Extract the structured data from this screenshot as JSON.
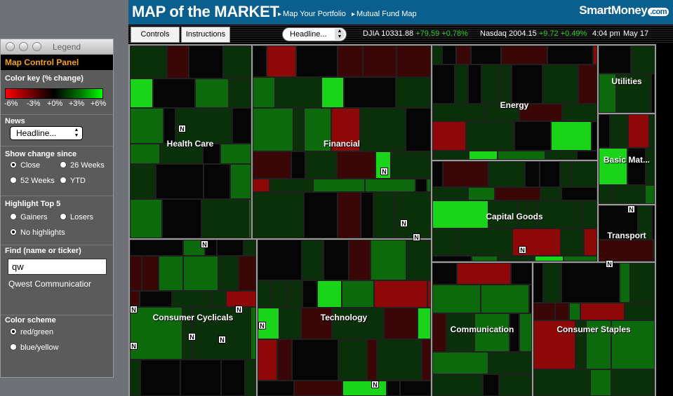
{
  "header": {
    "title": "MAP of the MARKET",
    "links": [
      "Map Your Portfolio",
      "Mutual Fund Map"
    ],
    "logo": "SmartMoney",
    "logo_suffix": ".com"
  },
  "toolbar": {
    "controls_label": "Controls",
    "instructions_label": "Instructions",
    "headline_select": "Headline...",
    "djia_name": "DJIA",
    "djia_value": "10331.88",
    "djia_change": "+79.59",
    "djia_pct": "+0.78%",
    "nasdaq_name": "Nasdaq",
    "nasdaq_value": "2004.15",
    "nasdaq_change": "+9.72",
    "nasdaq_pct": "+0.49%",
    "time": "4:04 pm",
    "date": "May 17"
  },
  "legend": {
    "window_title": "Legend",
    "panel_title": "Map Control Panel",
    "color_key_title": "Color key (% change)",
    "color_key_labels": [
      "-6%",
      "-3%",
      "+0%",
      "+3%",
      "+6%"
    ],
    "news_title": "News",
    "news_select": "Headline...",
    "change_title": "Show change since",
    "change_options": [
      "Close",
      "26 Weeks",
      "52 Weeks",
      "YTD"
    ],
    "change_selected": "Close",
    "highlight_title": "Highlight Top 5",
    "highlight_options": [
      "Gainers",
      "Losers",
      "No highlights"
    ],
    "highlight_selected": "No highlights",
    "find_title": "Find (name or ticker)",
    "find_value": "qw",
    "find_result": "Qwest Communicatior",
    "scheme_title": "Color scheme",
    "scheme_options": [
      "red/green",
      "blue/yellow"
    ],
    "scheme_selected": "red/green"
  },
  "map": {
    "sectors": [
      {
        "name": "Health Care"
      },
      {
        "name": "Financial"
      },
      {
        "name": "Energy"
      },
      {
        "name": "Utilities"
      },
      {
        "name": "Basic Mat..."
      },
      {
        "name": "Capital Goods"
      },
      {
        "name": "Transport"
      },
      {
        "name": "Consumer Cyclicals"
      },
      {
        "name": "Technology"
      },
      {
        "name": "Communication"
      },
      {
        "name": "Consumer Staples"
      }
    ],
    "news_badge": "N",
    "colors": {
      "strong_green": "#19d419",
      "green": "#0c6a0c",
      "dark_green": "#0a300a",
      "black": "#050505",
      "dark_red": "#3a0606",
      "red": "#8f0808"
    }
  }
}
